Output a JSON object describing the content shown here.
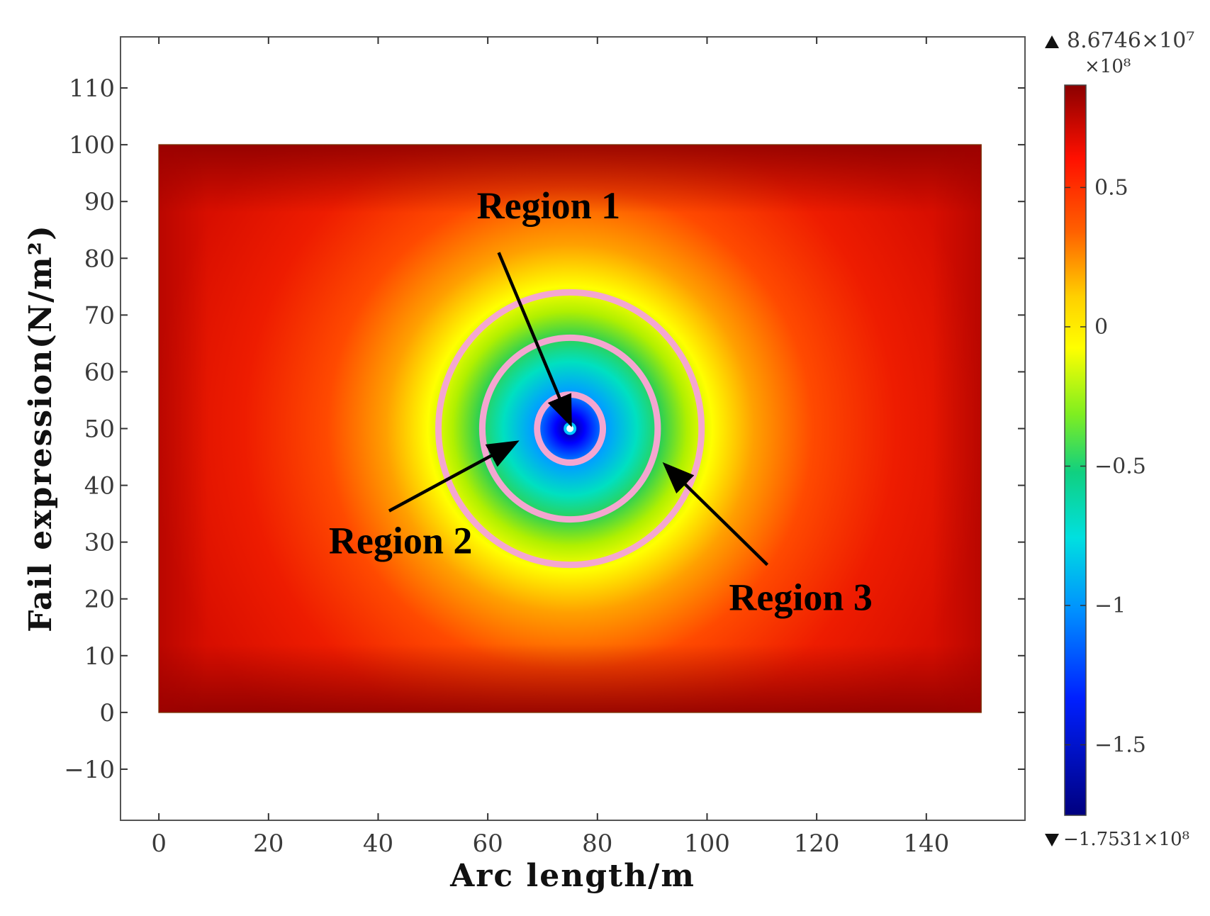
{
  "chart_data": {
    "type": "heatmap",
    "xlabel": "Arc length/m",
    "ylabel": "Fail expression(N/m²)",
    "xlim": [
      -7,
      158
    ],
    "ylim": [
      -19,
      119
    ],
    "x_ticks": [
      0,
      20,
      40,
      60,
      80,
      100,
      120,
      140
    ],
    "y_ticks": [
      -10,
      0,
      10,
      20,
      30,
      40,
      50,
      60,
      70,
      80,
      90,
      100,
      110
    ],
    "domain": {
      "x": [
        0,
        150
      ],
      "y": [
        0,
        100
      ]
    },
    "hole_center": [
      75,
      50
    ],
    "contour_radii": [
      6,
      16,
      24
    ],
    "colorbar": {
      "max_label": "8.6746×10⁷",
      "exponent_label": "×10⁸",
      "min_label": "−1.7531×10⁸",
      "max_value": 0.86746,
      "min_value": -1.7531,
      "ticks": [
        {
          "value": 0.5,
          "label": "0.5"
        },
        {
          "value": 0,
          "label": "0"
        },
        {
          "value": -0.5,
          "label": "−0.5"
        },
        {
          "value": -1,
          "label": "−1"
        },
        {
          "value": -1.5,
          "label": "−1.5"
        }
      ]
    },
    "annotations": [
      {
        "text": "Region 1",
        "label_x": 58,
        "label_y": 87,
        "tail": [
          62,
          81
        ],
        "head": [
          75,
          51
        ]
      },
      {
        "text": "Region 2",
        "label_x": 31,
        "label_y": 28,
        "tail": [
          42,
          35.5
        ],
        "head": [
          65,
          47.5
        ]
      },
      {
        "text": "Region 3",
        "label_x": 104,
        "label_y": 18,
        "tail": [
          111,
          26
        ],
        "head": [
          92.5,
          43.5
        ]
      }
    ],
    "colors": {
      "colormap": [
        "#00007f",
        "#0000ff",
        "#00a0ff",
        "#00e0c0",
        "#20d060",
        "#c8f000",
        "#ffff00",
        "#ffa000",
        "#ff4000",
        "#e81000",
        "#8b0000"
      ],
      "contour": "#f4a6d0",
      "arrow": "#000000",
      "hole": "#ffffff"
    }
  }
}
